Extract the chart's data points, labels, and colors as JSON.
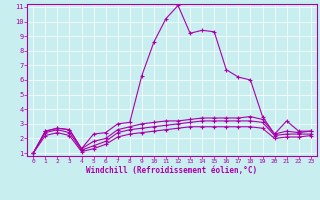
{
  "xlabel": "Windchill (Refroidissement éolien,°C)",
  "background_color": "#c8eef0",
  "line_color": "#aa00aa",
  "grid_color": "#ffffff",
  "xlim": [
    -0.5,
    23.5
  ],
  "ylim": [
    0.8,
    11.2
  ],
  "xticks": [
    0,
    1,
    2,
    3,
    4,
    5,
    6,
    7,
    8,
    9,
    10,
    11,
    12,
    13,
    14,
    15,
    16,
    17,
    18,
    19,
    20,
    21,
    22,
    23
  ],
  "yticks": [
    1,
    2,
    3,
    4,
    5,
    6,
    7,
    8,
    9,
    10,
    11
  ],
  "lines": [
    [
      1.0,
      2.5,
      2.7,
      2.6,
      1.3,
      2.3,
      2.4,
      3.0,
      3.1,
      6.3,
      8.6,
      10.2,
      11.1,
      9.2,
      9.4,
      9.3,
      6.7,
      6.2,
      6.0,
      3.5,
      2.3,
      3.2,
      2.5,
      2.5
    ],
    [
      1.0,
      2.5,
      2.7,
      2.6,
      1.3,
      1.8,
      2.0,
      2.6,
      2.8,
      3.0,
      3.1,
      3.2,
      3.2,
      3.3,
      3.4,
      3.4,
      3.4,
      3.4,
      3.5,
      3.3,
      2.3,
      2.5,
      2.4,
      2.5
    ],
    [
      1.0,
      2.4,
      2.6,
      2.4,
      1.2,
      1.5,
      1.8,
      2.4,
      2.6,
      2.7,
      2.8,
      2.9,
      3.0,
      3.1,
      3.2,
      3.2,
      3.2,
      3.2,
      3.2,
      3.1,
      2.2,
      2.3,
      2.3,
      2.3
    ],
    [
      1.0,
      2.2,
      2.4,
      2.2,
      1.1,
      1.3,
      1.6,
      2.1,
      2.3,
      2.4,
      2.5,
      2.6,
      2.7,
      2.8,
      2.8,
      2.8,
      2.8,
      2.8,
      2.8,
      2.7,
      2.0,
      2.1,
      2.1,
      2.2
    ]
  ]
}
